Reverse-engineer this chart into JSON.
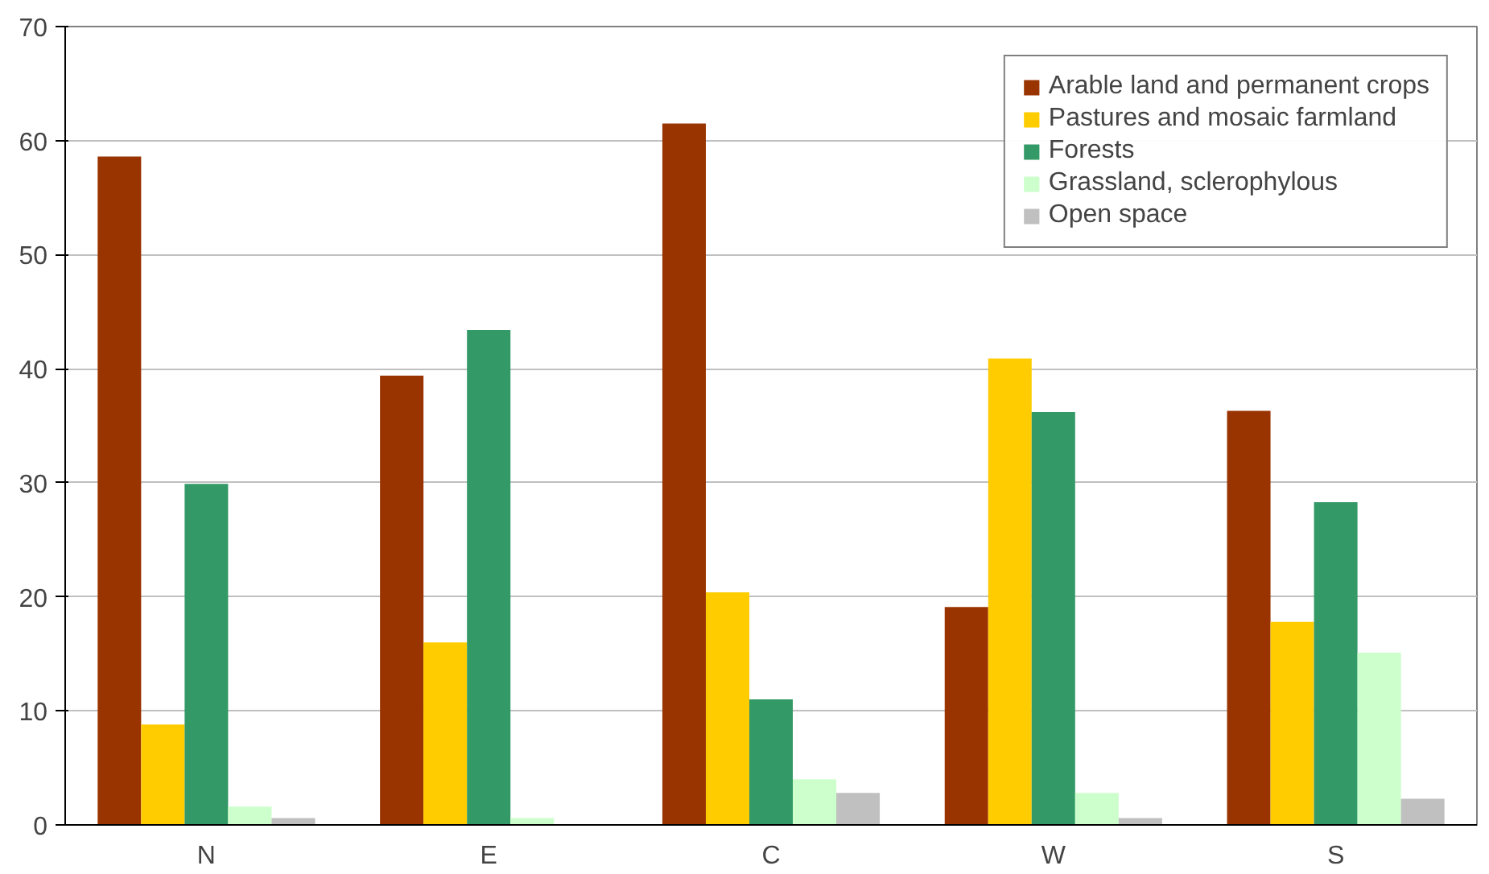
{
  "chart_data": {
    "type": "bar",
    "categories": [
      "N",
      "E",
      "C",
      "W",
      "S"
    ],
    "series": [
      {
        "name": "Arable land and permanent crops",
        "color": "#993300",
        "values": [
          58.6,
          39.4,
          61.5,
          19.1,
          36.3
        ]
      },
      {
        "name": "Pastures and mosaic farmland",
        "color": "#ffcc00",
        "values": [
          8.8,
          16.0,
          20.4,
          40.9,
          17.8
        ]
      },
      {
        "name": "Forests",
        "color": "#339966",
        "values": [
          29.9,
          43.4,
          11.0,
          36.2,
          28.3
        ]
      },
      {
        "name": "Grassland, sclerophylous",
        "color": "#ccffcc",
        "values": [
          1.6,
          0.6,
          4.0,
          2.8,
          15.1
        ]
      },
      {
        "name": "Open space",
        "color": "#c0c0c0",
        "values": [
          0.6,
          null,
          2.8,
          0.6,
          2.3
        ]
      }
    ],
    "ylim": [
      0,
      70
    ],
    "yticks": [
      0,
      10,
      20,
      30,
      40,
      50,
      60,
      70
    ],
    "grid": "y",
    "legend": "top right"
  }
}
